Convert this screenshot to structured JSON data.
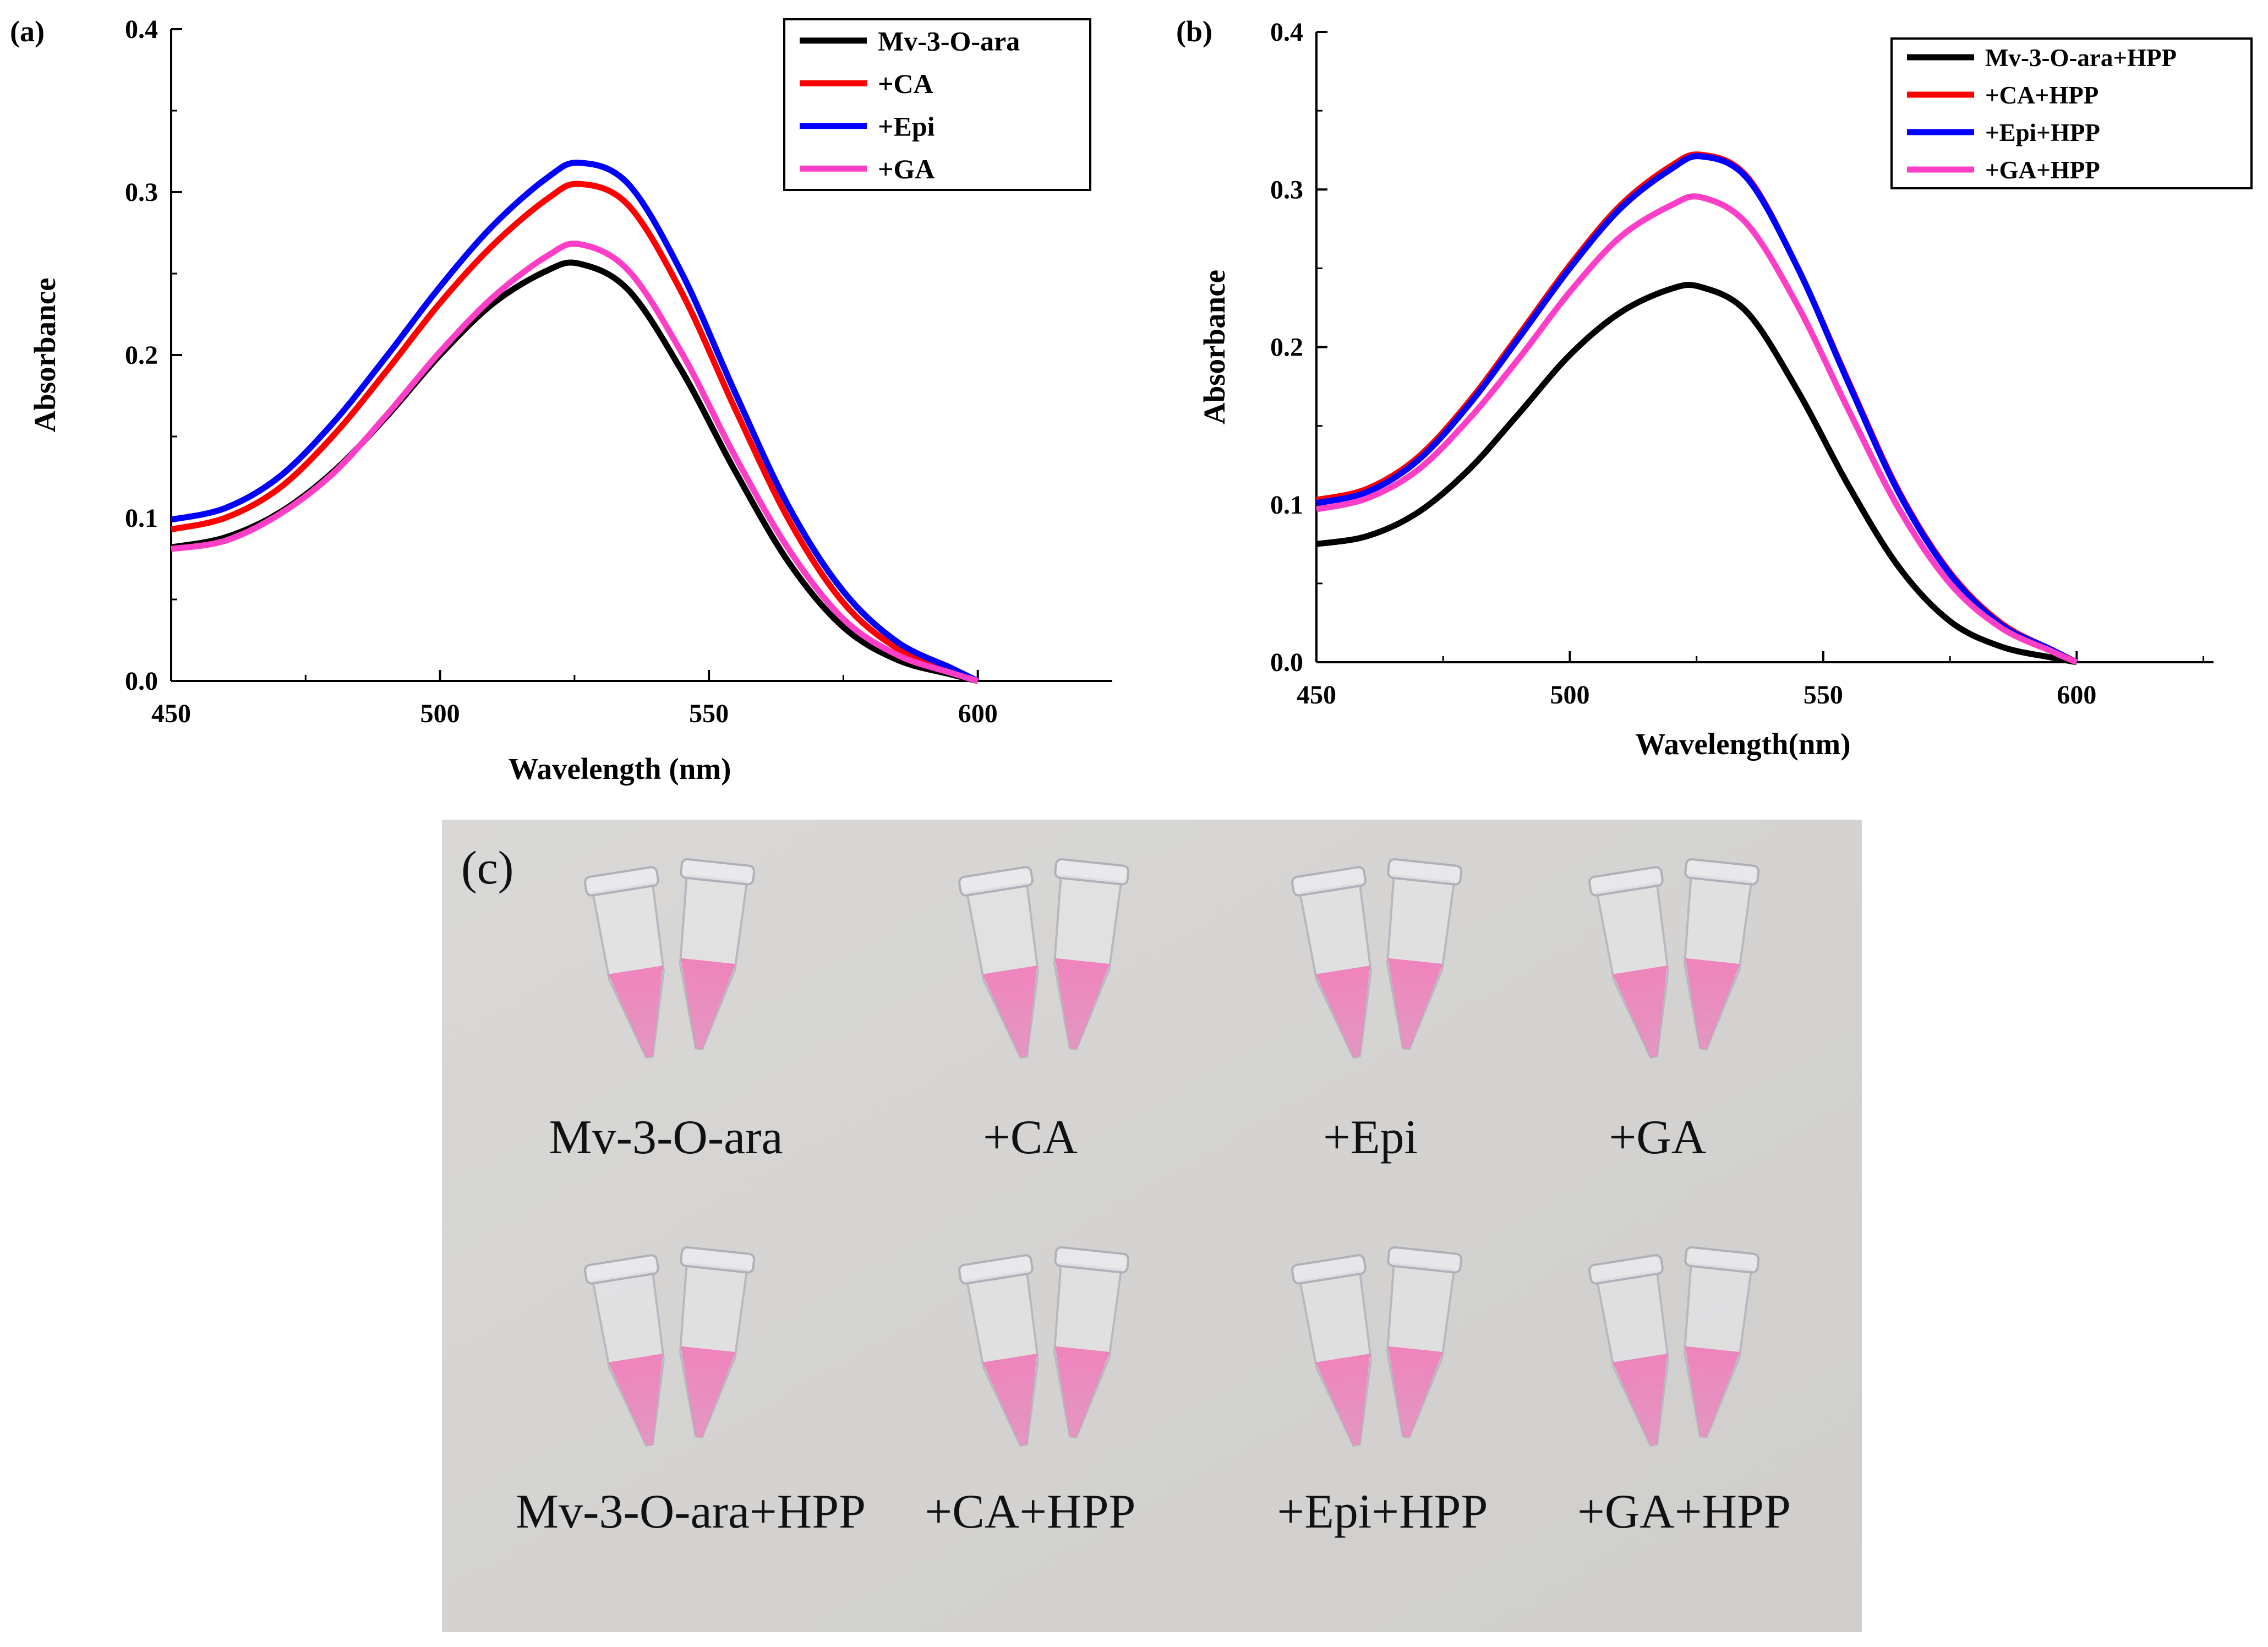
{
  "chart_data": [
    {
      "panel_label": "(a)",
      "type": "line",
      "title": "",
      "xlabel": "Wavelength (nm)",
      "ylabel": "Absorbance",
      "xlim": [
        450,
        625
      ],
      "ylim": [
        0,
        0.4
      ],
      "xticks": [
        "450",
        "500",
        "550",
        "600"
      ],
      "yticks": [
        "0.0",
        "0.1",
        "0.2",
        "0.3",
        "0.4"
      ],
      "x": [
        450,
        460,
        470,
        480,
        490,
        500,
        510,
        520,
        526,
        535,
        545,
        555,
        565,
        575,
        585,
        595,
        600
      ],
      "legend_position": "top-right",
      "series": [
        {
          "name": "Mv-3-O-ara",
          "color": "#000000",
          "values": [
            0.082,
            0.088,
            0.103,
            0.128,
            0.162,
            0.2,
            0.232,
            0.252,
            0.256,
            0.24,
            0.19,
            0.128,
            0.072,
            0.033,
            0.013,
            0.004,
            0.0
          ]
        },
        {
          "name": "+CA",
          "color": "#ff0000",
          "values": [
            0.093,
            0.1,
            0.118,
            0.15,
            0.19,
            0.232,
            0.268,
            0.296,
            0.305,
            0.292,
            0.238,
            0.166,
            0.098,
            0.048,
            0.02,
            0.006,
            0.0
          ]
        },
        {
          "name": "+Epi",
          "color": "#0000ff",
          "values": [
            0.099,
            0.106,
            0.125,
            0.158,
            0.199,
            0.242,
            0.28,
            0.309,
            0.318,
            0.305,
            0.25,
            0.176,
            0.106,
            0.055,
            0.024,
            0.008,
            0.0
          ]
        },
        {
          "name": "+GA",
          "color": "#ff3ec8",
          "values": [
            0.081,
            0.086,
            0.102,
            0.127,
            0.163,
            0.202,
            0.236,
            0.261,
            0.268,
            0.252,
            0.201,
            0.137,
            0.08,
            0.038,
            0.016,
            0.005,
            0.0
          ]
        }
      ]
    },
    {
      "panel_label": "(b)",
      "type": "line",
      "title": "",
      "xlabel": "Wavelength(nm)",
      "ylabel": "Absorbance",
      "xlim": [
        450,
        627
      ],
      "ylim": [
        0,
        0.4
      ],
      "xticks": [
        "450",
        "500",
        "550",
        "600"
      ],
      "yticks": [
        "0.0",
        "0.1",
        "0.2",
        "0.3",
        "0.4"
      ],
      "x": [
        450,
        460,
        470,
        480,
        490,
        500,
        510,
        520,
        526,
        535,
        545,
        555,
        565,
        575,
        585,
        595,
        600
      ],
      "legend_position": "top-right",
      "series": [
        {
          "name": "Mv-3-O-ara+HPP",
          "color": "#000000",
          "values": [
            0.075,
            0.08,
            0.095,
            0.122,
            0.158,
            0.195,
            0.222,
            0.237,
            0.238,
            0.222,
            0.172,
            0.112,
            0.06,
            0.026,
            0.01,
            0.003,
            0.0
          ]
        },
        {
          "name": "+CA+HPP",
          "color": "#ff0000",
          "values": [
            0.103,
            0.11,
            0.13,
            0.165,
            0.208,
            0.252,
            0.29,
            0.315,
            0.322,
            0.308,
            0.25,
            0.178,
            0.108,
            0.057,
            0.025,
            0.008,
            0.0
          ]
        },
        {
          "name": "+Epi+HPP",
          "color": "#0000ff",
          "values": [
            0.101,
            0.108,
            0.128,
            0.163,
            0.206,
            0.25,
            0.288,
            0.313,
            0.321,
            0.307,
            0.25,
            0.177,
            0.107,
            0.056,
            0.024,
            0.008,
            0.0
          ]
        },
        {
          "name": "+GA+HPP",
          "color": "#ff3ec8",
          "values": [
            0.097,
            0.104,
            0.122,
            0.154,
            0.193,
            0.235,
            0.27,
            0.29,
            0.295,
            0.278,
            0.226,
            0.16,
            0.097,
            0.05,
            0.022,
            0.007,
            0.0
          ]
        }
      ]
    }
  ],
  "photo": {
    "panel_label": "(c)",
    "row1_labels": [
      "Mv-3-O-ara",
      "+CA",
      "+Epi",
      "+GA"
    ],
    "row2_labels": [
      "Mv-3-O-ara+HPP",
      "+CA+HPP",
      "+Epi+HPP",
      "+GA+HPP"
    ]
  }
}
